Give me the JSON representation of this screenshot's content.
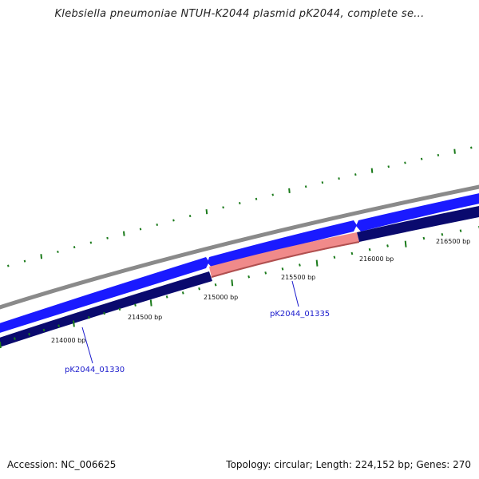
{
  "title": "Klebsiella pneumoniae NTUH-K2044 plasmid pK2044, complete se...",
  "footer": {
    "accession": "Accession: NC_006625",
    "summary": "Topology: circular; Length: 224,152 bp; Genes: 270"
  },
  "ticks": [
    {
      "bp": 214000,
      "label": "214000 bp"
    },
    {
      "bp": 214500,
      "label": "214500 bp"
    },
    {
      "bp": 215000,
      "label": "215000 bp"
    },
    {
      "bp": 215500,
      "label": "215500 bp"
    },
    {
      "bp": 216000,
      "label": "216000 bp"
    },
    {
      "bp": 216500,
      "label": "216500 bp"
    }
  ],
  "genes": [
    {
      "label": "pK2044_01330"
    },
    {
      "label": "pK2044_01335"
    }
  ],
  "colors": {
    "backbone": "#888888",
    "forward": "#1a1aff",
    "reverse": "#0a0a6e",
    "highlight": "#f08a8a",
    "gc_ticks": "#1a7a1a",
    "label_link": "#1a1acc"
  }
}
